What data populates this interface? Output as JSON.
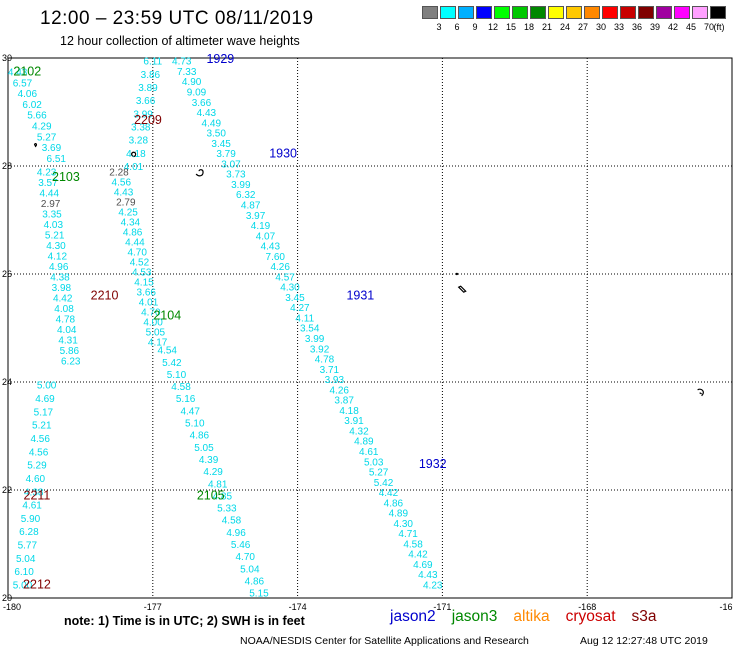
{
  "header": {
    "title": "12:00 – 23:59 UTC 08/11/2019",
    "subtitle": "12 hour collection of altimeter wave heights"
  },
  "legend": {
    "unit": "(ft)",
    "swatches": [
      {
        "color": "#808080",
        "label": "3"
      },
      {
        "color": "#00ffff",
        "label": "6"
      },
      {
        "color": "#00b0ff",
        "label": "9"
      },
      {
        "color": "#0000ff",
        "label": "12"
      },
      {
        "color": "#00ff00",
        "label": "15"
      },
      {
        "color": "#00c800",
        "label": "18"
      },
      {
        "color": "#008800",
        "label": "21"
      },
      {
        "color": "#ffff00",
        "label": "24"
      },
      {
        "color": "#ffc800",
        "label": "27"
      },
      {
        "color": "#ff8800",
        "label": "30"
      },
      {
        "color": "#ff0000",
        "label": "33"
      },
      {
        "color": "#c80000",
        "label": "36"
      },
      {
        "color": "#800000",
        "label": "39"
      },
      {
        "color": "#a000a0",
        "label": "42"
      },
      {
        "color": "#ff00ff",
        "label": "45"
      },
      {
        "color": "#ffa0ff",
        "label": "70"
      },
      {
        "color": "#000000",
        "label": ""
      }
    ]
  },
  "axes": {
    "lon_labels": [
      "-180",
      "-177",
      "-174",
      "-171",
      "-168",
      "-16"
    ],
    "lat_labels": [
      "30",
      "28",
      "26",
      "24",
      "22",
      "20"
    ]
  },
  "colors": {
    "wave_value": "#00d8e8",
    "wave_value_low": "#505050",
    "jason2": "#0000cc",
    "jason3": "#008800",
    "altika": "#ff8800",
    "cryosat": "#cc0000",
    "s3a": "#800000"
  },
  "passes": [
    {
      "id": "1929",
      "mission": "jason2",
      "lat": 29.98,
      "lon": -175.6
    },
    {
      "id": "1930",
      "mission": "jason2",
      "lat": 28.23,
      "lon": -174.3
    },
    {
      "id": "1931",
      "mission": "jason2",
      "lat": 25.6,
      "lon": -172.7
    },
    {
      "id": "1932",
      "mission": "jason2",
      "lat": 22.48,
      "lon": -171.2
    },
    {
      "id": "2102",
      "mission": "jason3",
      "lat": 29.75,
      "lon": -179.6
    },
    {
      "id": "2103",
      "mission": "jason3",
      "lat": 27.8,
      "lon": -178.8
    },
    {
      "id": "2104",
      "mission": "jason3",
      "lat": 25.23,
      "lon": -176.7
    },
    {
      "id": "2105",
      "mission": "jason3",
      "lat": 21.9,
      "lon": -175.8
    },
    {
      "id": "2209",
      "mission": "s3a",
      "lat": 28.85,
      "lon": -177.1
    },
    {
      "id": "2210",
      "mission": "s3a",
      "lat": 25.6,
      "lon": -178.0
    },
    {
      "id": "2211",
      "mission": "s3a",
      "lat": 21.9,
      "lon": -179.4
    },
    {
      "id": "2212",
      "mission": "s3a",
      "lat": 20.25,
      "lon": -179.4
    }
  ],
  "tracks": [
    {
      "id": "A",
      "values": [
        "4.43",
        "6.57",
        "4.06",
        "6.02",
        "5.66",
        "4.29",
        "5.27",
        "3.69",
        "6.51"
      ],
      "start": {
        "lat": 29.75,
        "lon": -179.8
      },
      "end": {
        "lat": 28.15,
        "lon": -179.0
      }
    },
    {
      "id": "B",
      "values": [
        "6.11",
        "3.86",
        "3.89",
        "3.66",
        "3.99",
        "3.38",
        "3.28",
        "4.18",
        "4.01"
      ],
      "start": {
        "lat": 29.95,
        "lon": -177.0
      },
      "end": {
        "lat": 28.0,
        "lon": -177.4
      }
    },
    {
      "id": "C",
      "values": [
        "4.73",
        "7.33",
        "4.90",
        "9.09",
        "3.66",
        "4.43",
        "4.49",
        "3.50",
        "3.45",
        "3.79",
        "3.07",
        "3.73",
        "3.99",
        "6.32",
        "4.87",
        "3.97",
        "4.19",
        "4.07",
        "4.43",
        "7.60",
        "4.26",
        "4.57",
        "4.30",
        "3.45",
        "4.27",
        "4.11",
        "3.54",
        "3.99",
        "3.92",
        "4.78",
        "3.71",
        "3.93",
        "4.26",
        "3.87",
        "4.18",
        "3.91",
        "4.32",
        "4.89",
        "4.61",
        "5.03",
        "5.27",
        "5.42",
        "4.42",
        "4.86",
        "4.89",
        "4.30",
        "4.71",
        "4.58",
        "4.42",
        "4.69",
        "4.43",
        "4.23"
      ],
      "start": {
        "lat": 29.95,
        "lon": -176.4
      },
      "end": {
        "lat": 20.25,
        "lon": -171.2
      }
    },
    {
      "id": "D",
      "values": [
        "4.23",
        "3.57",
        "4.44",
        "2.97",
        "3.35",
        "4.03",
        "5.21",
        "4.30",
        "4.12",
        "4.96",
        "4.38",
        "3.98",
        "4.42",
        "4.08",
        "4.78",
        "4.04",
        "4.31",
        "5.86",
        "6.23"
      ],
      "start": {
        "lat": 27.9,
        "lon": -179.2
      },
      "end": {
        "lat": 24.4,
        "lon": -178.7
      }
    },
    {
      "id": "E",
      "values": [
        "2.28",
        "4.56",
        "4.43",
        "2.79",
        "4.25",
        "4.34",
        "4.86",
        "4.44",
        "4.70",
        "4.52",
        "4.53",
        "4.15",
        "3.66",
        "4.01",
        "4.70",
        "4.00",
        "5.05",
        "4.17"
      ],
      "start": {
        "lat": 27.9,
        "lon": -177.7
      },
      "end": {
        "lat": 24.75,
        "lon": -176.9
      }
    },
    {
      "id": "F",
      "values": [
        "4.54",
        "5.42",
        "5.10",
        "4.58",
        "5.16",
        "4.47",
        "5.10",
        "4.86",
        "5.05",
        "4.39",
        "4.29",
        "4.81",
        "4.85",
        "5.33",
        "4.58",
        "4.96",
        "5.46",
        "4.70",
        "5.04",
        "4.86",
        "5.15"
      ],
      "start": {
        "lat": 24.6,
        "lon": -176.7
      },
      "end": {
        "lat": 20.1,
        "lon": -174.8
      }
    },
    {
      "id": "G",
      "values": [
        "5.00",
        "4.69",
        "5.17",
        "5.21",
        "4.56",
        "4.56",
        "5.29",
        "4.60",
        "4.38",
        "4.61",
        "5.90",
        "6.28",
        "5.77",
        "5.04",
        "6.10",
        "5.00"
      ],
      "start": {
        "lat": 23.95,
        "lon": -179.2
      },
      "end": {
        "lat": 20.25,
        "lon": -179.7
      }
    }
  ],
  "note": "note:  1) Time is in UTC;  2) SWH is in feet",
  "missions_legend": [
    {
      "key": "jason2",
      "label": "jason2"
    },
    {
      "key": "jason3",
      "label": "jason3"
    },
    {
      "key": "altika",
      "label": "altika"
    },
    {
      "key": "cryosat",
      "label": "cryosat"
    },
    {
      "key": "s3a",
      "label": "s3a"
    }
  ],
  "credit": "NOAA/NESDIS Center for Satellite Applications and Research",
  "timestamp": "Aug 12 12:27:48 UTC 2019"
}
